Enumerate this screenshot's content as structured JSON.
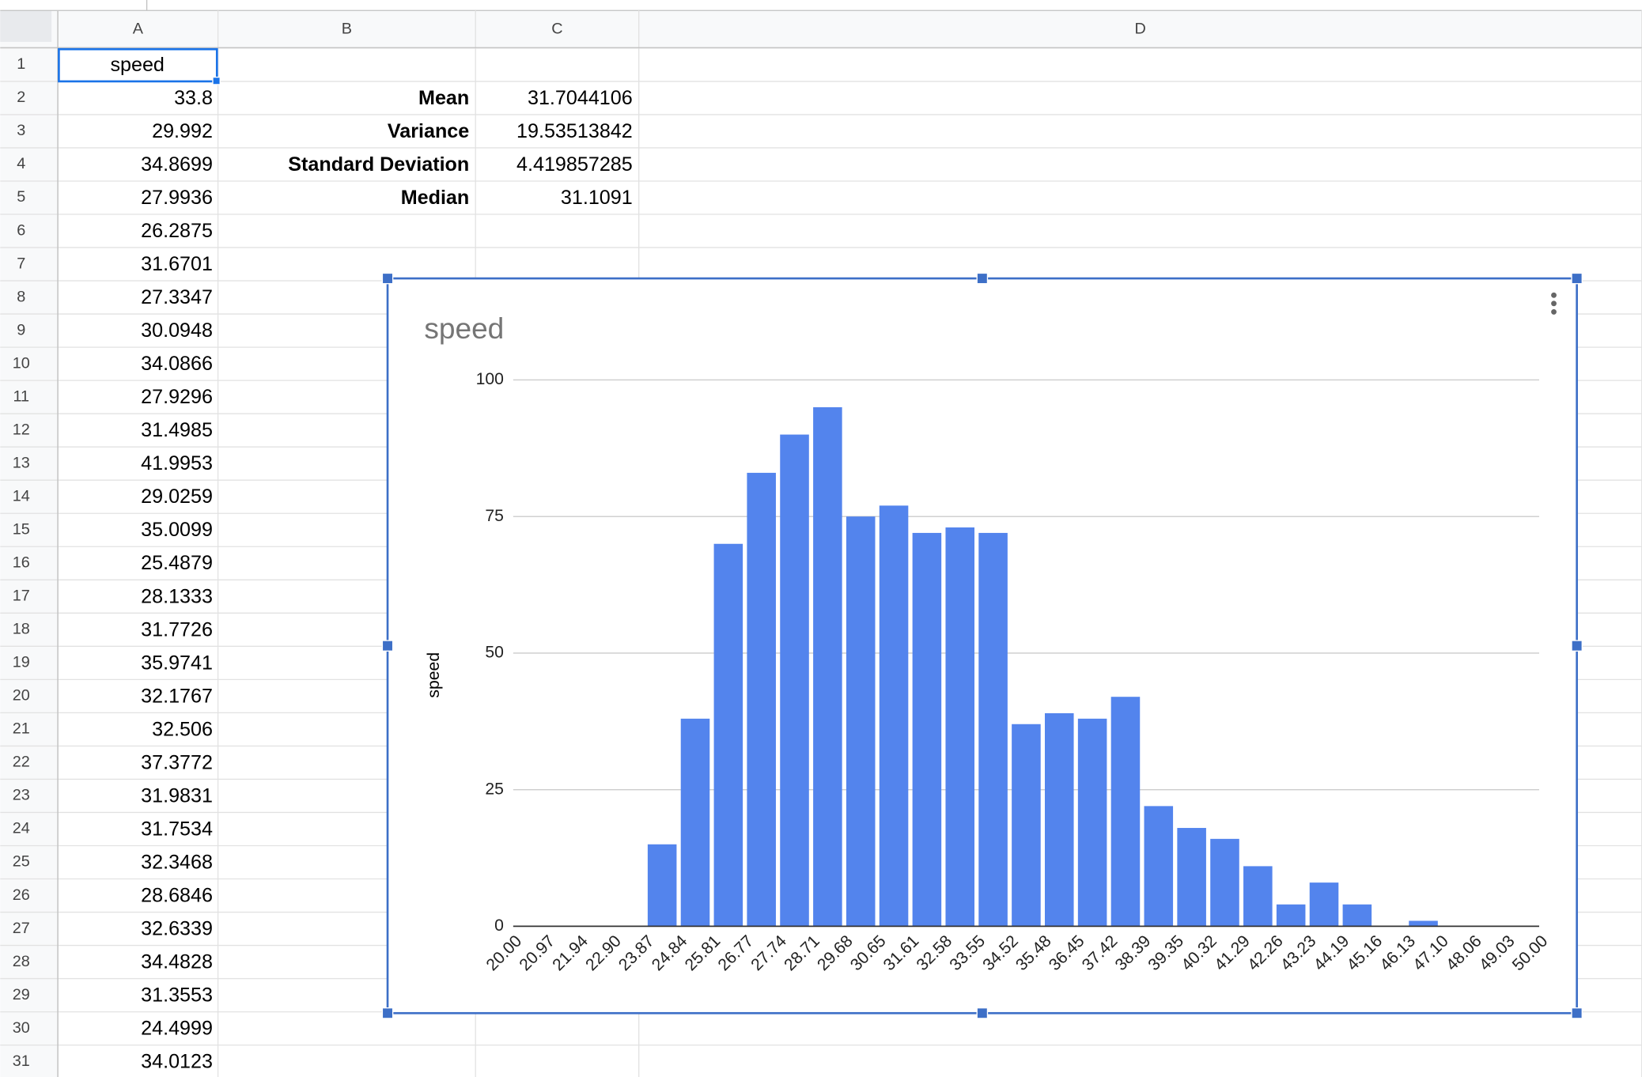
{
  "sheet": {
    "columns": [
      "A",
      "B",
      "C",
      "D"
    ],
    "row_numbers": [
      1,
      2,
      3,
      4,
      5,
      6,
      7,
      8,
      9,
      10,
      11,
      12,
      13,
      14,
      15,
      16,
      17,
      18,
      19,
      20,
      21,
      22,
      23,
      24,
      25,
      26,
      27,
      28,
      29,
      30,
      31
    ],
    "rows": [
      {
        "A": "speed"
      },
      {
        "A": "33.8",
        "B": "Mean",
        "C": "31.7044106"
      },
      {
        "A": "29.992",
        "B": "Variance",
        "C": "19.53513842"
      },
      {
        "A": "34.8699",
        "B": "Standard Deviation",
        "C": "4.419857285"
      },
      {
        "A": "27.9936",
        "B": "Median",
        "C": "31.1091"
      },
      {
        "A": "26.2875"
      },
      {
        "A": "31.6701"
      },
      {
        "A": "27.3347"
      },
      {
        "A": "30.0948"
      },
      {
        "A": "34.0866"
      },
      {
        "A": "27.9296"
      },
      {
        "A": "31.4985"
      },
      {
        "A": "41.9953"
      },
      {
        "A": "29.0259"
      },
      {
        "A": "35.0099"
      },
      {
        "A": "25.4879"
      },
      {
        "A": "28.1333"
      },
      {
        "A": "31.7726"
      },
      {
        "A": "35.9741"
      },
      {
        "A": "32.1767"
      },
      {
        "A": "32.506"
      },
      {
        "A": "37.3772"
      },
      {
        "A": "31.9831"
      },
      {
        "A": "31.7534"
      },
      {
        "A": "32.3468"
      },
      {
        "A": "28.6846"
      },
      {
        "A": "32.6339"
      },
      {
        "A": "34.4828"
      },
      {
        "A": "31.3553"
      },
      {
        "A": "24.4999"
      },
      {
        "A": "34.0123"
      }
    ]
  },
  "chart_data": {
    "type": "histogram",
    "title": "speed",
    "y_label": "speed",
    "color": "#5384ed",
    "bins": [
      {
        "value": 20,
        "label": "20.00"
      },
      {
        "value": 20.9677,
        "label": "20.97"
      },
      {
        "value": 21.9355,
        "label": "21.94"
      },
      {
        "value": 22.9032,
        "label": "22.90"
      },
      {
        "value": 23.871,
        "label": "23.87"
      },
      {
        "value": 24.8387,
        "label": "24.84"
      },
      {
        "value": 25.8065,
        "label": "25.81"
      },
      {
        "value": 26.7742,
        "label": "26.77"
      },
      {
        "value": 27.7419,
        "label": "27.74"
      },
      {
        "value": 28.7097,
        "label": "28.71"
      },
      {
        "value": 29.6774,
        "label": "29.68"
      },
      {
        "value": 30.6452,
        "label": "30.65"
      },
      {
        "value": 31.6129,
        "label": "31.61"
      },
      {
        "value": 32.5806,
        "label": "32.58"
      },
      {
        "value": 33.5484,
        "label": "33.55"
      },
      {
        "value": 34.5161,
        "label": "34.52"
      },
      {
        "value": 35.4839,
        "label": "35.48"
      },
      {
        "value": 36.4516,
        "label": "36.45"
      },
      {
        "value": 37.4194,
        "label": "37.42"
      },
      {
        "value": 38.3871,
        "label": "38.39"
      },
      {
        "value": 39.3548,
        "label": "39.35"
      },
      {
        "value": 40.3226,
        "label": "40.32"
      },
      {
        "value": 41.2903,
        "label": "41.29"
      },
      {
        "value": 42.2581,
        "label": "42.26"
      },
      {
        "value": 43.2258,
        "label": "43.23"
      },
      {
        "value": 44.1935,
        "label": "44.19"
      },
      {
        "value": 45.1613,
        "label": "45.16"
      },
      {
        "value": 46.129,
        "label": "46.13"
      },
      {
        "value": 47.0968,
        "label": "47.10"
      },
      {
        "value": 48.0645,
        "label": "48.06"
      },
      {
        "value": 49.0323,
        "label": "49.03"
      },
      {
        "value": 50,
        "label": "50.00"
      }
    ],
    "values": [
      0,
      0,
      0,
      0,
      15,
      38,
      70,
      83,
      90,
      95,
      75,
      77,
      72,
      73,
      72,
      37,
      39,
      38,
      42,
      22,
      18,
      16,
      11,
      4,
      8,
      4,
      0,
      1,
      0,
      0,
      0
    ],
    "xlim": [
      20,
      50
    ],
    "ylim": [
      0,
      100
    ],
    "yticks": [
      0,
      25,
      50,
      75,
      100
    ],
    "grid": true
  }
}
